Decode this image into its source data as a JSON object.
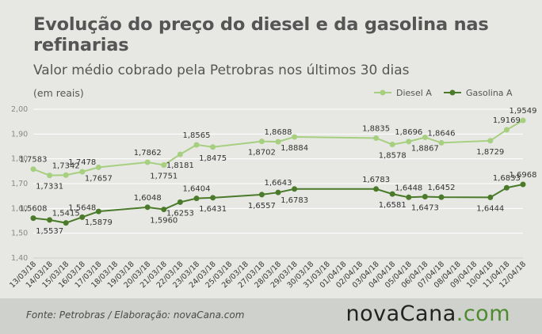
{
  "header": {
    "title": "Evolução do preço do diesel e da gasolina nas refinarias",
    "subtitle": "Valor médio cobrado pela Petrobras nos últimos 30 dias",
    "unit_note": "(em reais)"
  },
  "footer": {
    "source": "Fonte:  Petrobras  / Elaboração:  novaCana.com",
    "brand_main": "novaCana",
    "brand_suffix": ".com"
  },
  "colors": {
    "diesel": "#a6cf7f",
    "gasolina": "#4a7a2a",
    "grid": "#ffffff",
    "axis": "#cfcfcf"
  },
  "chart_data": {
    "type": "line",
    "legend_position": "top-right",
    "grid": true,
    "ylim": [
      1.4,
      2.0
    ],
    "yticks": [
      "2,00",
      "1,90",
      "1,80",
      "1,70",
      "1,60",
      "1,50",
      "1,40"
    ],
    "x": [
      "13/03/18",
      "14/03/18",
      "15/03/18",
      "16/03/18",
      "17/03/18",
      "18/03/18",
      "19/03/18",
      "20/03/18",
      "21/03/18",
      "22/03/18",
      "23/03/18",
      "24/03/18",
      "25/03/18",
      "26/03/18",
      "27/03/18",
      "28/03/18",
      "29/03/18",
      "30/03/18",
      "31/03/18",
      "01/04/18",
      "02/04/18",
      "03/04/18",
      "04/04/18",
      "05/04/18",
      "06/04/18",
      "07/04/18",
      "08/04/18",
      "09/04/18",
      "10/04/18",
      "11/04/18",
      "12/04/18"
    ],
    "series": [
      {
        "name": "Diesel A",
        "points": [
          {
            "x": "13/03/18",
            "y": 1.7583,
            "label": "1,7583",
            "pos": "above"
          },
          {
            "x": "14/03/18",
            "y": 1.7331,
            "label": "1,7331",
            "pos": "below"
          },
          {
            "x": "15/03/18",
            "y": 1.7342,
            "label": "1,7342",
            "pos": "above"
          },
          {
            "x": "16/03/18",
            "y": 1.7478,
            "label": "1,7478",
            "pos": "above"
          },
          {
            "x": "17/03/18",
            "y": 1.7657,
            "label": "1,7657",
            "pos": "below"
          },
          {
            "x": "20/03/18",
            "y": 1.7862,
            "label": "1,7862",
            "pos": "above"
          },
          {
            "x": "21/03/18",
            "y": 1.7751,
            "label": "1,7751",
            "pos": "below"
          },
          {
            "x": "22/03/18",
            "y": 1.8181,
            "label": "1,8181",
            "pos": "below"
          },
          {
            "x": "23/03/18",
            "y": 1.8565,
            "label": "1,8565",
            "pos": "above"
          },
          {
            "x": "24/03/18",
            "y": 1.8475,
            "label": "1,8475",
            "pos": "below"
          },
          {
            "x": "27/03/18",
            "y": 1.8702,
            "label": "1,8702",
            "pos": "below"
          },
          {
            "x": "28/03/18",
            "y": 1.8688,
            "label": "1,8688",
            "pos": "above"
          },
          {
            "x": "29/03/18",
            "y": 1.8884,
            "label": "1,8884",
            "pos": "below"
          },
          {
            "x": "03/04/18",
            "y": 1.8835,
            "label": "1,8835",
            "pos": "above"
          },
          {
            "x": "04/04/18",
            "y": 1.8578,
            "label": "1,8578",
            "pos": "below"
          },
          {
            "x": "05/04/18",
            "y": 1.8696,
            "label": "1,8696",
            "pos": "above"
          },
          {
            "x": "06/04/18",
            "y": 1.8867,
            "label": "1,8867",
            "pos": "below"
          },
          {
            "x": "07/04/18",
            "y": 1.8646,
            "label": "1,8646",
            "pos": "above"
          },
          {
            "x": "10/04/18",
            "y": 1.8729,
            "label": "1,8729",
            "pos": "below"
          },
          {
            "x": "11/04/18",
            "y": 1.9169,
            "label": "1,9169",
            "pos": "above"
          },
          {
            "x": "12/04/18",
            "y": 1.9549,
            "label": "1,9549",
            "pos": "above"
          }
        ]
      },
      {
        "name": "Gasolina A",
        "points": [
          {
            "x": "13/03/18",
            "y": 1.5608,
            "label": "1,5608",
            "pos": "above"
          },
          {
            "x": "14/03/18",
            "y": 1.5537,
            "label": "1,5537",
            "pos": "below"
          },
          {
            "x": "15/03/18",
            "y": 1.5415,
            "label": "1,5415",
            "pos": "above"
          },
          {
            "x": "16/03/18",
            "y": 1.5648,
            "label": "1,5648",
            "pos": "above"
          },
          {
            "x": "17/03/18",
            "y": 1.5879,
            "label": "1,5879",
            "pos": "below"
          },
          {
            "x": "20/03/18",
            "y": 1.6048,
            "label": "1,6048",
            "pos": "above"
          },
          {
            "x": "21/03/18",
            "y": 1.596,
            "label": "1,5960",
            "pos": "below"
          },
          {
            "x": "22/03/18",
            "y": 1.6253,
            "label": "1,6253",
            "pos": "below"
          },
          {
            "x": "23/03/18",
            "y": 1.6404,
            "label": "1,6404",
            "pos": "above"
          },
          {
            "x": "24/03/18",
            "y": 1.6431,
            "label": "1,6431",
            "pos": "below"
          },
          {
            "x": "27/03/18",
            "y": 1.6557,
            "label": "1,6557",
            "pos": "below"
          },
          {
            "x": "28/03/18",
            "y": 1.6643,
            "label": "1,6643",
            "pos": "above"
          },
          {
            "x": "29/03/18",
            "y": 1.6783,
            "label": "1,6783",
            "pos": "below"
          },
          {
            "x": "03/04/18",
            "y": 1.6783,
            "label": "1,6783",
            "pos": "above"
          },
          {
            "x": "04/04/18",
            "y": 1.6581,
            "label": "1,6581",
            "pos": "below"
          },
          {
            "x": "05/04/18",
            "y": 1.6448,
            "label": "1,6448",
            "pos": "above"
          },
          {
            "x": "06/04/18",
            "y": 1.6473,
            "label": "1,6473",
            "pos": "below"
          },
          {
            "x": "07/04/18",
            "y": 1.6452,
            "label": "1,6452",
            "pos": "above"
          },
          {
            "x": "10/04/18",
            "y": 1.6444,
            "label": "1,6444",
            "pos": "below"
          },
          {
            "x": "11/04/18",
            "y": 1.6833,
            "label": "1,6833",
            "pos": "above"
          },
          {
            "x": "12/04/18",
            "y": 1.6968,
            "label": "1,6968",
            "pos": "above"
          }
        ]
      }
    ]
  }
}
